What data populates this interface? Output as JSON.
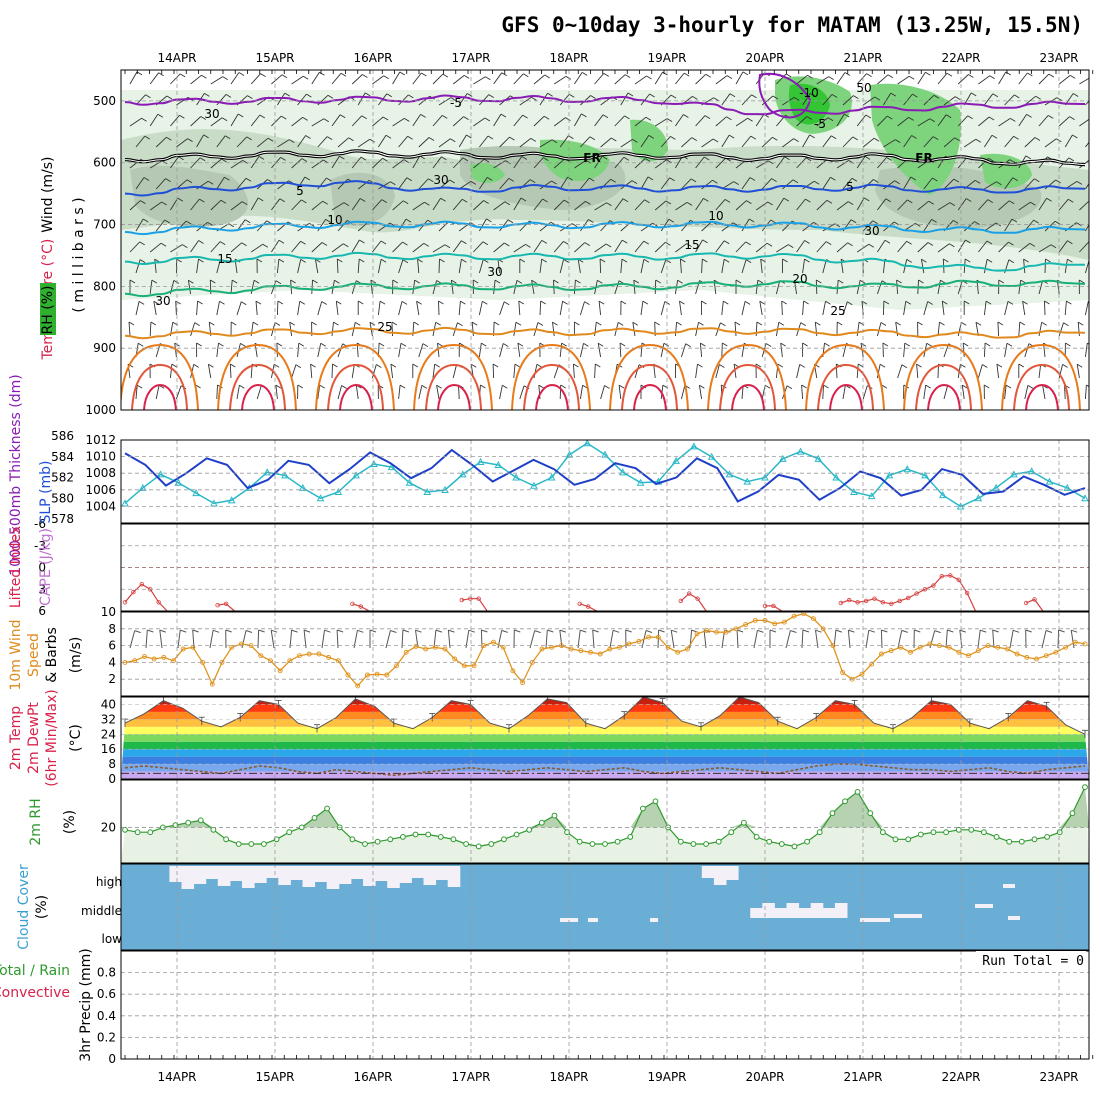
{
  "title": "GFS 0~10day 3-hourly for MATAM (13.25W, 15.5N)",
  "dates": [
    "14APR",
    "15APR",
    "16APR",
    "17APR",
    "18APR",
    "19APR",
    "20APR",
    "21APR",
    "22APR",
    "23APR"
  ],
  "colors": {
    "grid": "#9a9a9a",
    "purple": "#8a1bb5",
    "blue": "#1f4fd6",
    "cyan": "#1aa0e6",
    "teal": "#18b8b0",
    "green_c": "#19b078",
    "orange": "#e08a1e",
    "red": "#d8224a",
    "rh_green": "#7dd47d",
    "cloud": "#6aaed6"
  },
  "labels": {
    "p1_wind": "Wind (m/s)",
    "p1_temp": "Temperature (°C)",
    "p1_rh": "RH (%)",
    "p1_mb": "( m i l l i b a r s )",
    "p2_thick": "1000-500mb Thickness (dm)",
    "p2_slp": "SLP (mb)",
    "p3_li": "Lifted Index",
    "p3_cape": "CAPE (J/kg)",
    "p4_a": "10m Wind",
    "p4_b": "Speed",
    "p4_c": "& Barbs",
    "p4_d": "(m/s)",
    "p5_a": "2m Temp",
    "p5_b": "2m DewPt",
    "p5_c": "(6hr Min/Max)",
    "p5_d": "(°C)",
    "p6_a": "2m RH",
    "p6_b": "(%)",
    "p7_a": "Cloud Cover",
    "p7_b": "(%)",
    "p8_a": "Total / Rain",
    "p8_b": "Convective",
    "p8_c": "3hr Precip (mm)",
    "run_total": "Run Total = 0",
    "fr": "FR"
  },
  "chart_data": [
    {
      "type": "line",
      "title": "GFS 0~10day 3-hourly for MATAM (13.25W, 15.5N)",
      "panel": "upper-air cross section",
      "ylabel": "millibars",
      "ylim": [
        1000,
        450
      ],
      "yticks": [
        500,
        600,
        700,
        800,
        900,
        1000
      ],
      "isotherm_labels": [
        "-10",
        "-5",
        "5",
        "10",
        "15",
        "20",
        "25",
        "30"
      ],
      "rh_labels": [
        "30",
        "50"
      ],
      "series": [
        {
          "name": "-10",
          "values": [
            null,
            null,
            null,
            null,
            null,
            null,
            482,
            null,
            null,
            null
          ]
        },
        {
          "name": "-5",
          "values": [
            502,
            500,
            498,
            496,
            497,
            499,
            520,
            514,
            508,
            505
          ]
        },
        {
          "name": "0",
          "values": [
            595,
            588,
            585,
            587,
            590,
            588,
            592,
            590,
            596,
            603
          ]
        },
        {
          "name": "5",
          "values": [
            650,
            640,
            632,
            645,
            640,
            642,
            642,
            640,
            645,
            642
          ]
        },
        {
          "name": "10",
          "values": [
            712,
            705,
            700,
            700,
            702,
            700,
            700,
            705,
            710,
            708
          ]
        },
        {
          "name": "15",
          "values": [
            760,
            755,
            750,
            752,
            752,
            752,
            750,
            760,
            772,
            765
          ]
        },
        {
          "name": "20",
          "values": [
            812,
            806,
            800,
            800,
            802,
            800,
            795,
            800,
            795,
            796
          ]
        },
        {
          "name": "25",
          "values": [
            880,
            875,
            872,
            872,
            875,
            872,
            872,
            875,
            880,
            875
          ]
        }
      ]
    },
    {
      "type": "line",
      "ylabel": "1000-500mb Thickness (dm)",
      "ylim": [
        578,
        586
      ],
      "yticks": [
        578,
        580,
        582,
        584,
        586
      ],
      "y2label": "SLP (mb)",
      "y2lim": [
        1002,
        1012
      ],
      "y2ticks": [
        1004,
        1006,
        1008,
        1010,
        1012
      ],
      "series": [
        {
          "name": "SLP (mb)",
          "values": [
            1010.4,
            1009.0,
            1006.5,
            1008.0,
            1009.8,
            1009.0,
            1006.2,
            1007.2,
            1009.5,
            1009.0,
            1006.8,
            1008.5,
            1010.5,
            1009.2,
            1007.4,
            1008.6,
            1010.8,
            1009.0,
            1007.0,
            1008.3,
            1009.6,
            1008.5,
            1006.6,
            1007.3,
            1009.2,
            1008.6,
            1006.7,
            1007.5,
            1009.8,
            1008.6,
            1004.6,
            1005.8,
            1007.8,
            1007.2,
            1004.8,
            1006.2,
            1008.2,
            1007.4,
            1005.3,
            1006.0,
            1008.5,
            1007.8,
            1005.5,
            1005.8,
            1007.6,
            1006.6,
            1005.4,
            1006.2
          ]
        },
        {
          "name": "1000-500mb Thickness (dm)",
          "values": [
            579.5,
            581.0,
            582.3,
            581.5,
            580.5,
            579.5,
            579.8,
            581.0,
            582.5,
            582.2,
            581.0,
            580.0,
            580.6,
            582.2,
            583.3,
            583.0,
            581.5,
            580.6,
            580.8,
            582.3,
            583.5,
            583.2,
            582.0,
            581.2,
            582.0,
            584.2,
            585.3,
            584.2,
            582.5,
            581.5,
            581.6,
            583.6,
            585.0,
            584.0,
            582.3,
            581.6,
            582.0,
            583.8,
            584.5,
            583.8,
            582.0,
            580.6,
            580.2,
            582.2,
            582.8,
            582.2,
            580.3,
            579.2,
            580.0,
            581.0,
            582.3,
            582.6,
            581.6,
            581.0,
            580.0
          ]
        }
      ]
    },
    {
      "type": "line",
      "ylabel": "Lifted Index",
      "ylim": [
        6,
        -6
      ],
      "yticks": [
        -6,
        -3,
        0,
        3,
        6
      ],
      "y2label": "CAPE (J/kg)",
      "series": [
        {
          "name": "Lifted Index",
          "values": [
            4.8,
            3.4,
            2.3,
            3.0,
            4.8,
            6.0,
            6.0,
            6.0,
            6.0,
            6.0,
            6.0,
            5.2,
            5.0,
            6.0,
            6.0,
            6.0,
            6.0,
            6.0,
            6.0,
            6.0,
            6.0,
            6.0,
            6.0,
            6.0,
            6.0,
            6.0,
            6.0,
            5.0,
            5.4,
            6.0,
            6.0,
            6.0,
            6.0,
            6.0,
            6.0,
            6.0,
            6.0,
            6.0,
            6.0,
            6.0,
            4.5,
            4.3,
            4.3,
            6.0,
            6.0,
            6.0,
            6.0,
            6.0,
            6.0,
            6.0,
            6.0,
            6.0,
            6.0,
            6.0,
            5.0,
            5.4,
            6.0,
            6.0,
            6.0,
            6.0,
            6.0,
            6.0,
            6.0,
            6.0,
            6.0,
            6.0,
            4.6,
            3.6,
            4.3,
            6.0,
            6.0,
            6.0,
            6.0,
            6.0,
            6.0,
            6.0,
            5.3,
            5.3,
            6.0,
            6.0,
            6.0,
            6.0,
            6.0,
            6.0,
            6.0,
            4.9,
            4.5,
            4.8,
            4.6,
            4.3,
            4.8,
            5.0,
            4.6,
            4.2,
            3.6,
            3.0,
            2.5,
            1.2,
            1.1,
            1.7,
            3.5,
            6.0,
            6.0,
            6.0,
            6.0,
            6.0,
            6.0,
            4.9,
            4.4,
            6.0,
            6.0,
            6.0,
            6.0,
            6.0,
            6.0
          ]
        }
      ]
    },
    {
      "type": "line",
      "ylabel": "10m Wind Speed & Barbs (m/s)",
      "ylim": [
        0,
        10
      ],
      "yticks": [
        2,
        4,
        6,
        8,
        10
      ],
      "series": [
        {
          "name": "10m Wind Speed",
          "values": [
            4.0,
            4.2,
            4.7,
            4.4,
            4.6,
            4.2,
            5.6,
            5.8,
            4.0,
            1.4,
            4.0,
            5.8,
            6.2,
            6.0,
            4.8,
            4.2,
            3.0,
            4.2,
            4.8,
            5.0,
            5.0,
            4.6,
            4.2,
            2.5,
            1.2,
            2.5,
            2.6,
            2.5,
            3.6,
            5.2,
            5.9,
            5.6,
            5.8,
            5.6,
            4.4,
            3.6,
            3.6,
            6.0,
            6.4,
            5.8,
            3.0,
            1.6,
            4.0,
            5.6,
            5.8,
            6.0,
            5.6,
            5.4,
            5.2,
            5.0,
            5.6,
            5.8,
            6.2,
            6.5,
            7.0,
            7.0,
            5.8,
            5.2,
            5.6,
            7.4,
            7.8,
            7.6,
            7.6,
            8.0,
            8.5,
            9.0,
            9.0,
            8.6,
            8.8,
            9.5,
            9.8,
            9.2,
            8.0,
            6.0,
            2.8,
            2.0,
            2.6,
            3.8,
            5.0,
            5.4,
            5.8,
            5.2,
            5.8,
            6.2,
            6.0,
            5.8,
            5.2,
            4.8,
            5.4,
            6.0,
            5.8,
            5.6,
            5.0,
            4.6,
            4.4,
            4.8,
            5.2,
            5.8,
            6.4,
            6.2
          ]
        }
      ]
    },
    {
      "type": "area",
      "ylabel": "2m Temp 2m DewPt (6hr Min/Max) (°C)",
      "ylim": [
        0,
        44
      ],
      "yticks": [
        0,
        8,
        16,
        24,
        32,
        40
      ],
      "series": [
        {
          "name": "2m Temp",
          "values": [
            30,
            35,
            42,
            38,
            31,
            28,
            33,
            42,
            40,
            30,
            27,
            33,
            43,
            39,
            30,
            27,
            33,
            42,
            40,
            30,
            27,
            34,
            43,
            41,
            30,
            27,
            34,
            44,
            41,
            31,
            28,
            34,
            44,
            41,
            31,
            27,
            33,
            42,
            40,
            30,
            27,
            33,
            42,
            40,
            30,
            27,
            33,
            42,
            39,
            29,
            24
          ]
        },
        {
          "name": "2m DewPt",
          "values": [
            6,
            7,
            6,
            5,
            4,
            3,
            5,
            7,
            6,
            4,
            3,
            5,
            4,
            3,
            2,
            3,
            4,
            5,
            6,
            5,
            4,
            5,
            6,
            5,
            4,
            5,
            6,
            4,
            3,
            4,
            5,
            6,
            5,
            4,
            3,
            5,
            7,
            8,
            8,
            7,
            6,
            5,
            5,
            4,
            5,
            6,
            4,
            3,
            5,
            6,
            7
          ]
        }
      ]
    },
    {
      "type": "area",
      "ylabel": "2m RH (%)",
      "ylim": [
        5,
        40
      ],
      "yticks": [
        20
      ],
      "series": [
        {
          "name": "2m RH",
          "values": [
            19,
            18,
            18,
            20,
            21,
            22,
            23,
            19,
            15,
            13,
            13,
            13,
            15,
            18,
            20,
            24,
            28,
            20,
            15,
            13,
            14,
            15,
            16,
            17,
            17,
            16,
            15,
            13,
            12,
            13,
            15,
            17,
            19,
            22,
            25,
            18,
            14,
            13,
            13,
            14,
            16,
            28,
            31,
            20,
            14,
            13,
            13,
            14,
            18,
            22,
            16,
            14,
            13,
            12,
            14,
            18,
            26,
            31,
            35,
            26,
            18,
            15,
            15,
            17,
            18,
            18,
            19,
            19,
            18,
            16,
            14,
            14,
            15,
            16,
            18,
            26,
            37
          ]
        }
      ]
    },
    {
      "type": "bar",
      "ylabel": "Cloud Cover (%)",
      "ytick_labels": [
        "low",
        "middle",
        "high"
      ],
      "series": [
        {
          "name": "high",
          "values": [
            0,
            0,
            0,
            0,
            1,
            1,
            1,
            1,
            1,
            1,
            1,
            1,
            1,
            1,
            1,
            1,
            1,
            1,
            1,
            1,
            1,
            1,
            1,
            1,
            1,
            1,
            1,
            1,
            0,
            0,
            0,
            0,
            0,
            0,
            0,
            0,
            0,
            0,
            0,
            0,
            0,
            0,
            0,
            0,
            0,
            0,
            0,
            0,
            1,
            1,
            1,
            0,
            0,
            0,
            0,
            0,
            0,
            0,
            0,
            0,
            0,
            0,
            0,
            0,
            0,
            0,
            0,
            0,
            0,
            0,
            0,
            0,
            0,
            0,
            0,
            0,
            0,
            0,
            0,
            0
          ]
        },
        {
          "name": "middle",
          "values": [
            0,
            0,
            0,
            0,
            0,
            0,
            0,
            0,
            0,
            0,
            0,
            0,
            0,
            0,
            0,
            0,
            0,
            0,
            0,
            0,
            0,
            0,
            0,
            0,
            0,
            0,
            0,
            0,
            0,
            0,
            0,
            0,
            0,
            0,
            0,
            0,
            0,
            0,
            0,
            0,
            0,
            0,
            0,
            0,
            0,
            0,
            0,
            0,
            0,
            0,
            0,
            0,
            1,
            1,
            1,
            1,
            1,
            1,
            1,
            1,
            0,
            0,
            0,
            0,
            0,
            0,
            0,
            0,
            0,
            0,
            0,
            0,
            0,
            0,
            0,
            0,
            0,
            0,
            0,
            0
          ]
        }
      ]
    },
    {
      "type": "bar",
      "ylabel": "3hr Precip (mm)",
      "ylim": [
        0,
        1
      ],
      "yticks": [
        0,
        0.2,
        0.4,
        0.6,
        0.8
      ],
      "series": [
        {
          "name": "Total / Rain",
          "values": [
            0,
            0,
            0,
            0,
            0,
            0,
            0,
            0,
            0,
            0
          ]
        },
        {
          "name": "Convective",
          "values": [
            0,
            0,
            0,
            0,
            0,
            0,
            0,
            0,
            0,
            0
          ]
        }
      ]
    }
  ]
}
